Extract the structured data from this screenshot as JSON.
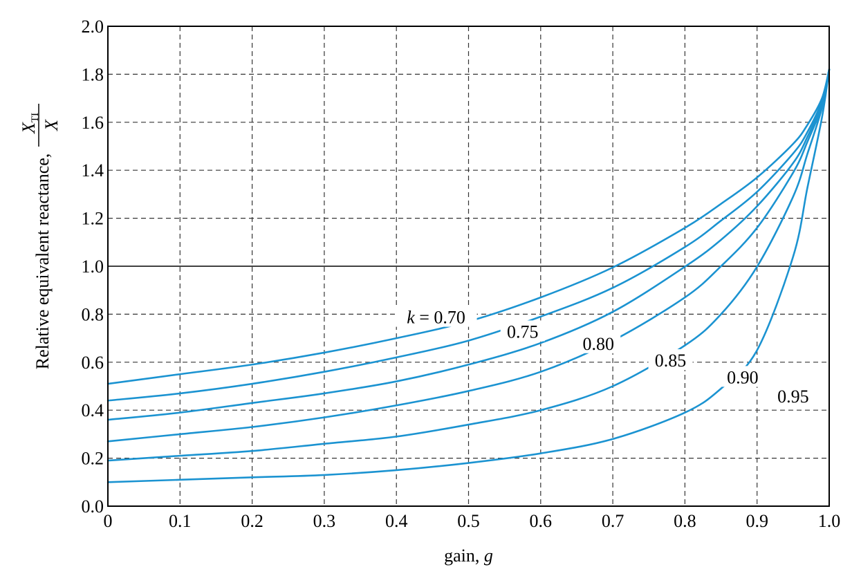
{
  "chart_data": {
    "type": "line",
    "xlabel": "gain, g",
    "xlabel_prefix": "gain, ",
    "xlabel_var": "g",
    "ylabel": "Relative equivalent reactance, X_TI / X",
    "ylabel_prefix": "Relative equivalent reactance,",
    "ylabel_numerator": "X",
    "ylabel_numerator_sub": "TI",
    "ylabel_denominator": "X",
    "xlim": [
      0,
      1.0
    ],
    "ylim": [
      0,
      2.0
    ],
    "x_ticks": [
      "0",
      "0.1",
      "0.2",
      "0.3",
      "0.4",
      "0.5",
      "0.6",
      "0.7",
      "0.8",
      "0.9",
      "1.0"
    ],
    "y_ticks": [
      "0.0",
      "0.2",
      "0.4",
      "0.6",
      "0.8",
      "1.0",
      "1.2",
      "1.4",
      "1.6",
      "1.8",
      "2.0"
    ],
    "grid": true,
    "reference_line_y": 1.0,
    "series_color": "#1b93d1",
    "x": [
      0,
      0.1,
      0.2,
      0.3,
      0.4,
      0.5,
      0.6,
      0.7,
      0.8,
      0.85,
      0.9,
      0.95,
      0.97,
      0.99,
      1.0
    ],
    "series": [
      {
        "name": "k = 0.70",
        "values": [
          0.51,
          0.55,
          0.59,
          0.64,
          0.7,
          0.77,
          0.87,
          0.995,
          1.16,
          1.26,
          1.37,
          1.51,
          1.59,
          1.7,
          1.82
        ]
      },
      {
        "name": "0.75",
        "values": [
          0.44,
          0.47,
          0.51,
          0.56,
          0.62,
          0.69,
          0.79,
          0.91,
          1.08,
          1.19,
          1.31,
          1.47,
          1.56,
          1.69,
          1.82
        ]
      },
      {
        "name": "0.80",
        "values": [
          0.36,
          0.39,
          0.43,
          0.47,
          0.52,
          0.59,
          0.68,
          0.81,
          0.998,
          1.11,
          1.25,
          1.43,
          1.54,
          1.68,
          1.82
        ]
      },
      {
        "name": "0.85",
        "values": [
          0.27,
          0.3,
          0.33,
          0.37,
          0.42,
          0.48,
          0.56,
          0.69,
          0.87,
          1.0,
          1.16,
          1.39,
          1.52,
          1.67,
          1.82
        ]
      },
      {
        "name": "0.90",
        "values": [
          0.19,
          0.21,
          0.23,
          0.26,
          0.29,
          0.34,
          0.4,
          0.5,
          0.67,
          0.8,
          0.998,
          1.29,
          1.47,
          1.66,
          1.82
        ]
      },
      {
        "name": "0.95",
        "values": [
          0.1,
          0.11,
          0.12,
          0.13,
          0.15,
          0.18,
          0.22,
          0.28,
          0.39,
          0.49,
          0.65,
          1.04,
          1.33,
          1.62,
          1.82
        ]
      }
    ],
    "curve_labels": [
      {
        "text": "0.70",
        "prefix": "k",
        "x": 0.455,
        "y": 0.785
      },
      {
        "text": "0.75",
        "x": 0.575,
        "y": 0.725
      },
      {
        "text": "0.80",
        "x": 0.68,
        "y": 0.675
      },
      {
        "text": "0.85",
        "x": 0.78,
        "y": 0.605
      },
      {
        "text": "0.90",
        "x": 0.88,
        "y": 0.535
      },
      {
        "text": "0.95",
        "x": 0.95,
        "y": 0.455
      }
    ]
  }
}
